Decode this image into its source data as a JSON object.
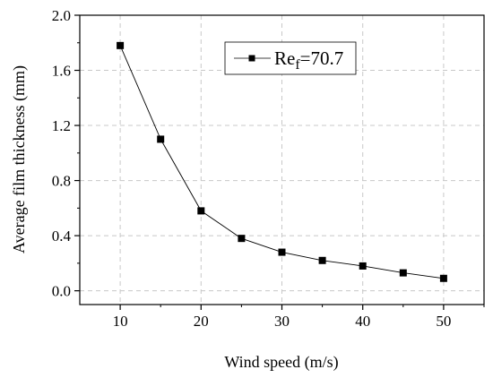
{
  "chart_data": {
    "type": "line",
    "title": "",
    "xlabel": "Wind speed (m/s)",
    "ylabel": "Average film thickness (mm)",
    "xlim": [
      5,
      55
    ],
    "ylim": [
      -0.1,
      2.0
    ],
    "x_ticks": [
      10,
      20,
      30,
      40,
      50
    ],
    "x_tick_labels": [
      "10",
      "20",
      "30",
      "40",
      "50"
    ],
    "y_ticks": [
      0.0,
      0.4,
      0.8,
      1.2,
      1.6,
      2.0
    ],
    "y_tick_labels": [
      "0.0",
      "0.4",
      "0.8",
      "1.2",
      "1.6",
      "2.0"
    ],
    "grid": true,
    "grid_style": "dashed",
    "legend_position": "top-right",
    "series": [
      {
        "name": "Re_f=70.7",
        "legend_main": "Re",
        "legend_sub": "f",
        "legend_suffix": "=70.7",
        "marker": "square",
        "color": "#000000",
        "x": [
          10,
          15,
          20,
          25,
          30,
          35,
          40,
          45,
          50
        ],
        "y": [
          1.78,
          1.1,
          0.58,
          0.38,
          0.28,
          0.22,
          0.18,
          0.13,
          0.09
        ]
      }
    ]
  }
}
